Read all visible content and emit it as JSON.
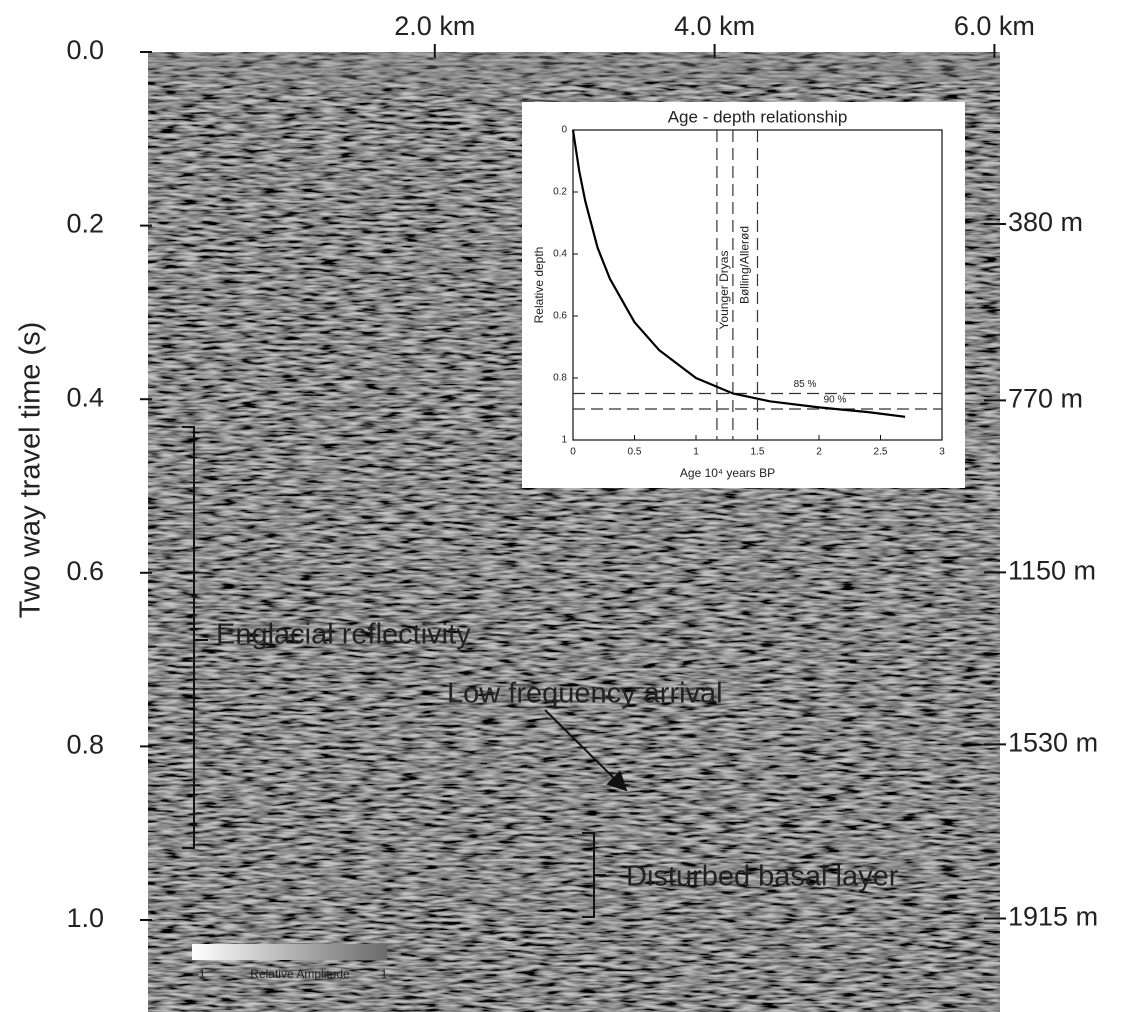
{
  "chart_data": [
    {
      "type": "seismic",
      "ylabel": "Two way travel time (s)",
      "xlim": [
        -0.05,
        6.04
      ],
      "xticks": [
        {
          "value": 2,
          "label": "2.0 km"
        },
        {
          "value": 4,
          "label": "4.0 km"
        },
        {
          "value": 6,
          "label": "6.0 km"
        }
      ],
      "ylim": [
        0,
        1.1
      ],
      "yticks": [
        {
          "value": 0,
          "label": "0.0"
        },
        0.2,
        0.4,
        0.6,
        0.8,
        {
          "value": 1,
          "label": "1.0"
        }
      ],
      "y2lim": [
        0,
        2110
      ],
      "y2ticks": [
        {
          "value": 380,
          "label": "380 m"
        },
        {
          "value": 770,
          "label": "770 m"
        },
        {
          "value": 1150,
          "label": "1150 m"
        },
        {
          "value": 1530,
          "label": "1530 m"
        },
        {
          "value": 1915,
          "label": "1915 m"
        }
      ],
      "annotations": [
        "Englacial reflectivity",
        "Low frequency arrival",
        "Disturbed basal layer"
      ],
      "colorbar": {
        "label": "Relative Amplitude",
        "min_label": "-1",
        "max_label": "1"
      }
    },
    {
      "type": "line",
      "title": "Age - depth relationship",
      "xlabel": "Age  10⁴ years BP",
      "ylabel": "Relative depth",
      "xlim": [
        0,
        3
      ],
      "xticks": [
        0,
        0.5,
        1,
        1.5,
        2,
        2.5,
        3
      ],
      "ylim": [
        0,
        1
      ],
      "yticks": [
        0,
        0.2,
        0.4,
        0.6,
        0.8,
        1
      ],
      "invert_y": true,
      "color": "#000000",
      "x": [
        0,
        0.05,
        0.1,
        0.2,
        0.3,
        0.5,
        0.7,
        1.0,
        1.3,
        1.6,
        2.0,
        2.4,
        2.7
      ],
      "y": [
        0,
        0.13,
        0.23,
        0.38,
        0.48,
        0.62,
        0.71,
        0.8,
        0.85,
        0.875,
        0.895,
        0.91,
        0.925
      ],
      "vlines": [
        1.17,
        1.3,
        1.5
      ],
      "vline_labels": [
        "Younger Dryas",
        "Bølling/Allerød"
      ],
      "hlines": [
        0.85,
        0.9
      ],
      "hline_labels": [
        "85 %",
        "90 %"
      ]
    }
  ]
}
